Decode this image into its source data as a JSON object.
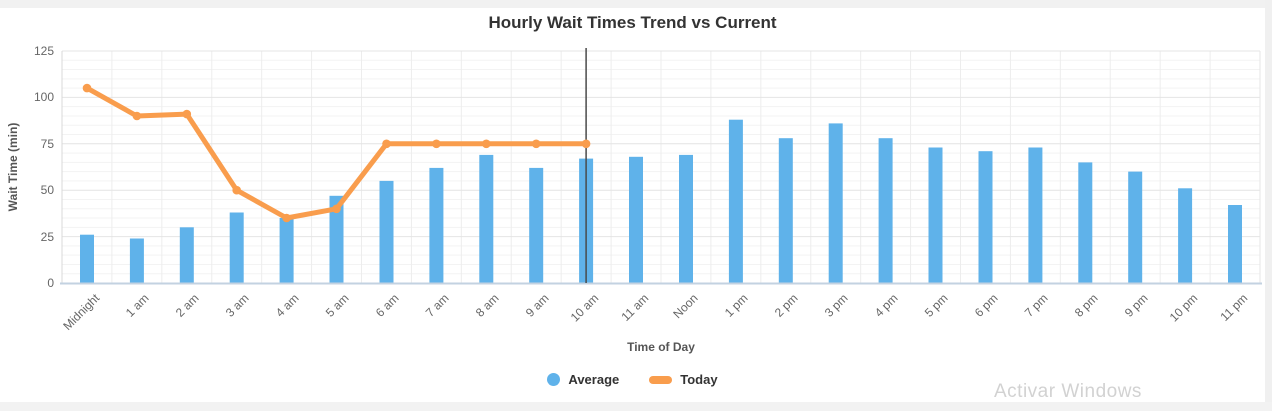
{
  "page": {
    "watermark": "Activar Windows"
  },
  "chart_data": {
    "type": "bar",
    "title": "Hourly Wait Times Trend vs Current",
    "xlabel": "Time of Day",
    "ylabel": "Wait Time (min)",
    "ylim": [
      0,
      125
    ],
    "yticks": [
      0,
      25,
      50,
      75,
      100,
      125
    ],
    "minor_grid_step": 5,
    "grid": "on",
    "legend_position": "bottom",
    "categories": [
      "Midnight",
      "1 am",
      "2 am",
      "3 am",
      "4 am",
      "5 am",
      "6 am",
      "7 am",
      "8 am",
      "9 am",
      "10 am",
      "11 am",
      "Noon",
      "1 pm",
      "2 pm",
      "3 pm",
      "4 pm",
      "5 pm",
      "6 pm",
      "7 pm",
      "8 pm",
      "9 pm",
      "10 pm",
      "11 pm"
    ],
    "series": [
      {
        "name": "Average",
        "type": "bar",
        "color": "#5FB2EA",
        "values": [
          26,
          24,
          30,
          38,
          35,
          47,
          55,
          62,
          69,
          62,
          67,
          68,
          69,
          88,
          78,
          86,
          78,
          73,
          71,
          73,
          65,
          60,
          51,
          42
        ]
      },
      {
        "name": "Today",
        "type": "line",
        "color": "#F99D4D",
        "values": [
          105,
          90,
          91,
          50,
          35,
          40,
          75,
          75,
          75,
          75,
          75,
          null,
          null,
          null,
          null,
          null,
          null,
          null,
          null,
          null,
          null,
          null,
          null,
          null
        ]
      }
    ],
    "current_time_marker": {
      "category": "10 am",
      "color": "#4a4a4a"
    },
    "legend": [
      {
        "label": "Average",
        "color": "#5FB2EA",
        "shape": "circle"
      },
      {
        "label": "Today",
        "color": "#F99D4D",
        "shape": "line"
      }
    ]
  }
}
